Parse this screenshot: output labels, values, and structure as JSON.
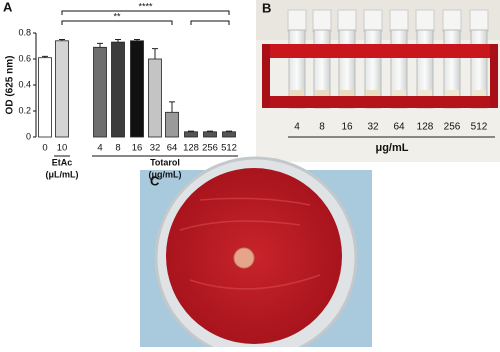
{
  "chart_data": {
    "type": "bar",
    "panel": "A",
    "y_label": "OD (625 nm)",
    "categories": [
      "0",
      "10",
      "4",
      "8",
      "16",
      "32",
      "64",
      "128",
      "256",
      "512"
    ],
    "values": [
      0.61,
      0.74,
      0.69,
      0.73,
      0.74,
      0.6,
      0.19,
      0.04,
      0.04,
      0.04
    ],
    "errors": [
      0.01,
      0.01,
      0.03,
      0.02,
      0.01,
      0.08,
      0.08,
      0.005,
      0.005,
      0.005
    ],
    "colors": [
      "#ffffff",
      "#d4d4d4",
      "#6e6e6e",
      "#3c3c3c",
      "#111111",
      "#c4c4c4",
      "#9a9a9a",
      "#555555",
      "#555555",
      "#555555"
    ],
    "ylim": [
      0,
      0.8
    ],
    "yticks": [
      0,
      0.2,
      0.4,
      0.6,
      0.8
    ],
    "groups": [
      {
        "name": "EtAc",
        "unit": "(μL/mL)"
      },
      {
        "name": "Totarol",
        "unit": "(μg/mL)"
      }
    ],
    "significance": [
      "****",
      "**"
    ]
  },
  "panel_b": {
    "label": "B",
    "concentrations": [
      "4",
      "8",
      "16",
      "32",
      "64",
      "128",
      "256",
      "512"
    ],
    "unit": "μg/mL"
  },
  "panel_c": {
    "label": "C"
  }
}
